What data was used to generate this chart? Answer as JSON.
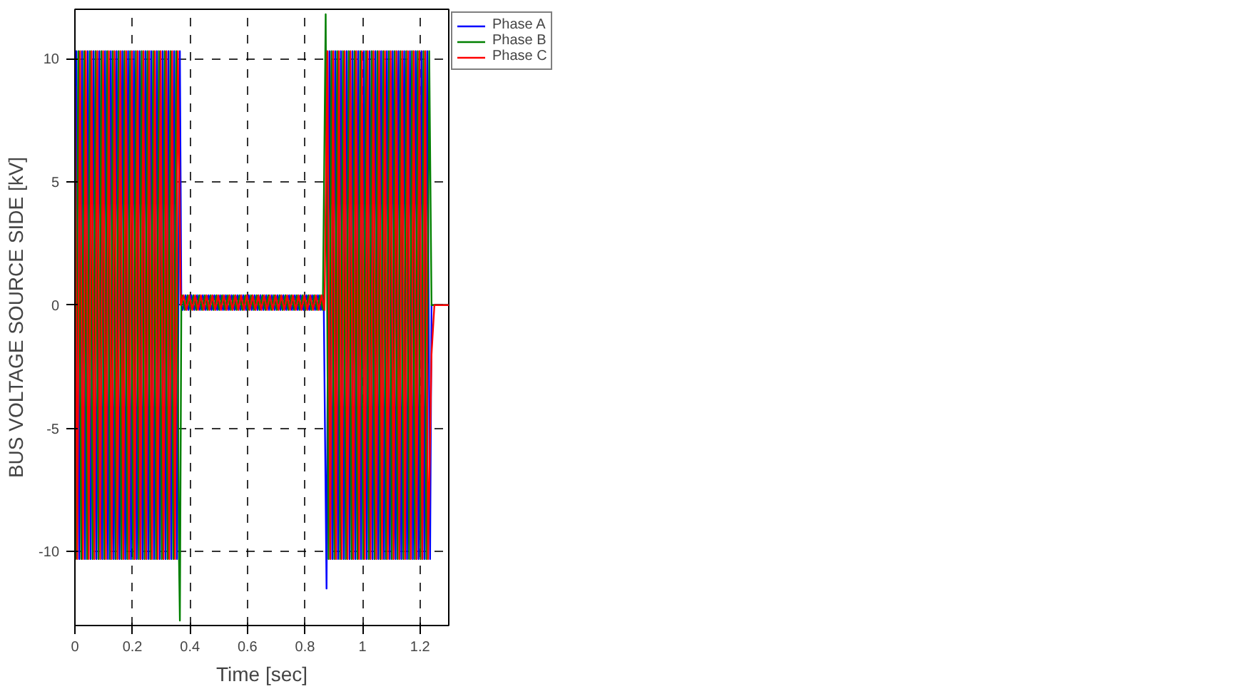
{
  "chart_data": {
    "type": "line",
    "xlabel": "Time [sec]",
    "ylabel": "BUS VOLTAGE SOURCE SIDE [kV]",
    "xlim": [
      0,
      1.3
    ],
    "ylim": [
      -13,
      12
    ],
    "xticks": [
      0,
      0.2,
      0.4,
      0.6,
      0.8,
      1,
      1.2
    ],
    "yticks": [
      -10,
      -5,
      0,
      5,
      10
    ],
    "grid": true,
    "legend": "right",
    "line_style": "solid",
    "marker": "none",
    "series": [
      {
        "name": "Phase A",
        "color": "#0000ff",
        "x": [
          0,
          0.005,
          0.015,
          0.025,
          0.035,
          0.045,
          0.055,
          0.065,
          0.075,
          0.085,
          0.095,
          0.105,
          0.115,
          0.125,
          0.135,
          0.145,
          0.155,
          0.165,
          0.175,
          0.185,
          0.195,
          0.205,
          0.215,
          0.225,
          0.235,
          0.245,
          0.255,
          0.265,
          0.275,
          0.285,
          0.295,
          0.305,
          0.315,
          0.325,
          0.335,
          0.345,
          0.355,
          0.365,
          0.37,
          0.375,
          0.385,
          0.395,
          0.405,
          0.415,
          0.425,
          0.435,
          0.445,
          0.455,
          0.465,
          0.475,
          0.485,
          0.495,
          0.505,
          0.515,
          0.525,
          0.535,
          0.545,
          0.555,
          0.565,
          0.575,
          0.585,
          0.595,
          0.605,
          0.615,
          0.625,
          0.635,
          0.645,
          0.655,
          0.665,
          0.675,
          0.685,
          0.695,
          0.705,
          0.715,
          0.725,
          0.735,
          0.745,
          0.755,
          0.765,
          0.775,
          0.785,
          0.795,
          0.805,
          0.815,
          0.825,
          0.835,
          0.845,
          0.855,
          0.865,
          0.875,
          0.885,
          0.895,
          0.905,
          0.915,
          0.925,
          0.935,
          0.945,
          0.955,
          0.965,
          0.975,
          0.985,
          0.995,
          1.005,
          1.015,
          1.025,
          1.035,
          1.045,
          1.055,
          1.065,
          1.075,
          1.085,
          1.095,
          1.105,
          1.115,
          1.125,
          1.135,
          1.145,
          1.155,
          1.165,
          1.175,
          1.185,
          1.195,
          1.205,
          1.215,
          1.225,
          1.235,
          1.24,
          1.3
        ],
        "values": [
          0,
          10.3,
          -10.3,
          10.3,
          -10.3,
          10.3,
          -10.3,
          10.3,
          -10.3,
          10.3,
          -10.3,
          10.3,
          -10.3,
          10.3,
          -10.3,
          10.3,
          -10.3,
          10.3,
          -10.3,
          10.3,
          -10.3,
          10.3,
          -10.3,
          10.3,
          -10.3,
          10.3,
          -10.3,
          10.3,
          -10.3,
          10.3,
          -10.3,
          10.3,
          -10.3,
          10.3,
          -10.3,
          10.3,
          -10.3,
          10.3,
          0,
          -0.2,
          0.4,
          -0.2,
          0.4,
          -0.2,
          0.4,
          -0.2,
          0.4,
          -0.2,
          0.4,
          -0.2,
          0.4,
          -0.2,
          0.4,
          -0.2,
          0.4,
          -0.2,
          0.4,
          -0.2,
          0.4,
          -0.2,
          0.4,
          -0.2,
          0.4,
          -0.2,
          0.4,
          -0.2,
          0.4,
          -0.2,
          0.4,
          -0.2,
          0.4,
          -0.2,
          0.4,
          -0.2,
          0.4,
          -0.2,
          0.4,
          -0.2,
          0.4,
          -0.2,
          0.4,
          -0.2,
          0.4,
          -0.2,
          0.4,
          -0.2,
          0.4,
          -0.2,
          0.4,
          -11.5,
          10.3,
          -10.3,
          10.3,
          -10.3,
          10.3,
          -10.3,
          10.3,
          -10.3,
          10.3,
          -10.3,
          10.3,
          -10.3,
          10.3,
          -10.3,
          10.3,
          -10.3,
          10.3,
          -10.3,
          10.3,
          -10.3,
          10.3,
          -10.3,
          10.3,
          -10.3,
          10.3,
          -10.3,
          10.3,
          -10.3,
          10.3,
          -10.3,
          10.3,
          -10.3,
          10.3,
          -10.3,
          10.3,
          -10.3,
          0,
          0
        ]
      },
      {
        "name": "Phase B",
        "color": "#008000",
        "x": [
          0,
          0.002,
          0.012,
          0.022,
          0.032,
          0.042,
          0.052,
          0.062,
          0.072,
          0.082,
          0.092,
          0.102,
          0.112,
          0.122,
          0.132,
          0.142,
          0.152,
          0.162,
          0.172,
          0.182,
          0.192,
          0.202,
          0.212,
          0.222,
          0.232,
          0.242,
          0.252,
          0.262,
          0.272,
          0.282,
          0.292,
          0.302,
          0.312,
          0.322,
          0.332,
          0.342,
          0.352,
          0.362,
          0.365,
          0.37,
          0.372,
          0.382,
          0.392,
          0.402,
          0.412,
          0.422,
          0.432,
          0.442,
          0.452,
          0.462,
          0.472,
          0.482,
          0.492,
          0.502,
          0.512,
          0.522,
          0.532,
          0.542,
          0.552,
          0.562,
          0.572,
          0.582,
          0.592,
          0.602,
          0.612,
          0.622,
          0.632,
          0.642,
          0.652,
          0.662,
          0.672,
          0.682,
          0.692,
          0.702,
          0.712,
          0.722,
          0.732,
          0.742,
          0.752,
          0.762,
          0.772,
          0.782,
          0.792,
          0.802,
          0.812,
          0.822,
          0.832,
          0.842,
          0.852,
          0.862,
          0.872,
          0.882,
          0.892,
          0.902,
          0.912,
          0.922,
          0.932,
          0.942,
          0.952,
          0.962,
          0.972,
          0.982,
          0.992,
          1.002,
          1.012,
          1.022,
          1.032,
          1.042,
          1.052,
          1.062,
          1.072,
          1.082,
          1.092,
          1.102,
          1.112,
          1.122,
          1.132,
          1.142,
          1.152,
          1.162,
          1.172,
          1.182,
          1.192,
          1.202,
          1.212,
          1.222,
          1.232,
          1.24,
          1.3
        ],
        "values": [
          -8.9,
          -10.3,
          10.3,
          -10.3,
          10.3,
          -10.3,
          10.3,
          -10.3,
          10.3,
          -10.3,
          10.3,
          -10.3,
          10.3,
          -10.3,
          10.3,
          -10.3,
          10.3,
          -10.3,
          10.3,
          -10.3,
          10.3,
          -10.3,
          10.3,
          -10.3,
          10.3,
          -10.3,
          10.3,
          -10.3,
          10.3,
          -10.3,
          10.3,
          -10.3,
          10.3,
          -10.3,
          10.3,
          -10.3,
          10.3,
          -10.3,
          -12.8,
          0,
          0.4,
          -0.2,
          0.4,
          -0.2,
          0.4,
          -0.2,
          0.4,
          -0.2,
          0.4,
          -0.2,
          0.4,
          -0.2,
          0.4,
          -0.2,
          0.4,
          -0.2,
          0.4,
          -0.2,
          0.4,
          -0.2,
          0.4,
          -0.2,
          0.4,
          -0.2,
          0.4,
          -0.2,
          0.4,
          -0.2,
          0.4,
          -0.2,
          0.4,
          -0.2,
          0.4,
          -0.2,
          0.4,
          -0.2,
          0.4,
          -0.2,
          0.4,
          -0.2,
          0.4,
          -0.2,
          0.4,
          -0.2,
          0.4,
          -0.2,
          0.4,
          -0.2,
          0.4,
          -0.2,
          11.8,
          -10.3,
          10.3,
          -10.3,
          10.3,
          -10.3,
          10.3,
          -10.3,
          10.3,
          -10.3,
          10.3,
          -10.3,
          10.3,
          -10.3,
          10.3,
          -10.3,
          10.3,
          -10.3,
          10.3,
          -10.3,
          10.3,
          -10.3,
          10.3,
          -10.3,
          10.3,
          -10.3,
          10.3,
          -10.3,
          10.3,
          -10.3,
          10.3,
          -10.3,
          10.3,
          -10.3,
          10.3,
          -10.3,
          10.3,
          0,
          0
        ]
      },
      {
        "name": "Phase C",
        "color": "#ff0000",
        "x": [
          0,
          0.008,
          0.018,
          0.028,
          0.038,
          0.048,
          0.058,
          0.068,
          0.078,
          0.088,
          0.098,
          0.108,
          0.118,
          0.128,
          0.138,
          0.148,
          0.158,
          0.168,
          0.178,
          0.188,
          0.198,
          0.208,
          0.218,
          0.228,
          0.238,
          0.248,
          0.258,
          0.268,
          0.278,
          0.288,
          0.298,
          0.308,
          0.318,
          0.328,
          0.338,
          0.348,
          0.358,
          0.368,
          0.378,
          0.388,
          0.398,
          0.408,
          0.418,
          0.428,
          0.438,
          0.448,
          0.458,
          0.468,
          0.478,
          0.488,
          0.498,
          0.508,
          0.518,
          0.528,
          0.538,
          0.548,
          0.558,
          0.568,
          0.578,
          0.588,
          0.598,
          0.608,
          0.618,
          0.628,
          0.638,
          0.648,
          0.658,
          0.668,
          0.678,
          0.688,
          0.698,
          0.708,
          0.718,
          0.728,
          0.738,
          0.748,
          0.758,
          0.768,
          0.778,
          0.788,
          0.798,
          0.808,
          0.818,
          0.828,
          0.838,
          0.848,
          0.858,
          0.868,
          0.878,
          0.888,
          0.898,
          0.908,
          0.918,
          0.928,
          0.938,
          0.948,
          0.958,
          0.968,
          0.978,
          0.988,
          0.998,
          1.008,
          1.018,
          1.028,
          1.038,
          1.048,
          1.058,
          1.068,
          1.078,
          1.088,
          1.098,
          1.108,
          1.118,
          1.128,
          1.138,
          1.148,
          1.158,
          1.168,
          1.178,
          1.188,
          1.198,
          1.208,
          1.218,
          1.228,
          1.24,
          1.25,
          1.3
        ],
        "values": [
          8.9,
          -10.3,
          10.3,
          -10.3,
          10.3,
          -10.3,
          10.3,
          -10.3,
          10.3,
          -10.3,
          10.3,
          -10.3,
          10.3,
          -10.3,
          10.3,
          -10.3,
          10.3,
          -10.3,
          10.3,
          -10.3,
          10.3,
          -10.3,
          10.3,
          -10.3,
          10.3,
          -10.3,
          10.3,
          -10.3,
          10.3,
          -10.3,
          10.3,
          -10.3,
          10.3,
          -10.3,
          10.3,
          -10.3,
          10.3,
          0,
          0.4,
          -0.2,
          0.4,
          -0.2,
          0.4,
          -0.2,
          0.4,
          -0.2,
          0.4,
          -0.2,
          0.4,
          -0.2,
          0.4,
          -0.2,
          0.4,
          -0.2,
          0.4,
          -0.2,
          0.4,
          -0.2,
          0.4,
          -0.2,
          0.4,
          -0.2,
          0.4,
          -0.2,
          0.4,
          -0.2,
          0.4,
          -0.2,
          0.4,
          -0.2,
          0.4,
          -0.2,
          0.4,
          -0.2,
          0.4,
          -0.2,
          0.4,
          -0.2,
          0.4,
          -0.2,
          0.4,
          -0.2,
          0.4,
          -0.2,
          0.4,
          -0.2,
          0.4,
          -0.2,
          10.3,
          -10.3,
          10.3,
          -10.3,
          10.3,
          -10.3,
          10.3,
          -10.3,
          10.3,
          -10.3,
          10.3,
          -10.3,
          10.3,
          -10.3,
          10.3,
          -10.3,
          10.3,
          -10.3,
          10.3,
          -10.3,
          10.3,
          -10.3,
          10.3,
          -10.3,
          10.3,
          -10.3,
          10.3,
          -10.3,
          10.3,
          -10.3,
          10.3,
          -10.3,
          10.3,
          -10.3,
          10.3,
          -10.3,
          -2,
          0,
          0
        ]
      }
    ]
  }
}
